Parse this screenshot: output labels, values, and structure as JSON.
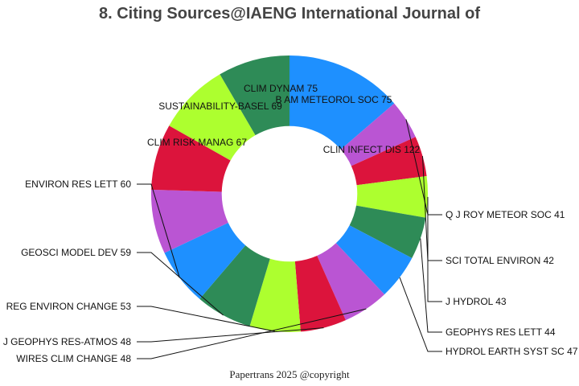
{
  "chart_data": {
    "type": "pie",
    "title": "8. Citing Sources@IAENG International Journal of",
    "inner_radius_ratio": 0.49,
    "slices": [
      {
        "label": "CLIN INFECT DIS",
        "value": 122,
        "color": "#1e90ff"
      },
      {
        "label": "Q J ROY METEOR SOC",
        "value": 41,
        "color": "#ba55d3"
      },
      {
        "label": "SCI TOTAL ENVIRON",
        "value": 42,
        "color": "#dc143c"
      },
      {
        "label": "J HYDROL",
        "value": 43,
        "color": "#adff2f"
      },
      {
        "label": "GEOPHYS RES LETT",
        "value": 44,
        "color": "#2e8b57"
      },
      {
        "label": "HYDROL EARTH SYST SC",
        "value": 47,
        "color": "#1e90ff"
      },
      {
        "label": "WIRES CLIM CHANGE",
        "value": 48,
        "color": "#ba55d3"
      },
      {
        "label": "J GEOPHYS RES-ATMOS",
        "value": 48,
        "color": "#dc143c"
      },
      {
        "label": "REG ENVIRON CHANGE",
        "value": 53,
        "color": "#adff2f"
      },
      {
        "label": "GEOSCI MODEL DEV",
        "value": 59,
        "color": "#2e8b57"
      },
      {
        "label": "ENVIRON RES LETT",
        "value": 60,
        "color": "#1e90ff"
      },
      {
        "label": "CLIM RISK MANAG",
        "value": 67,
        "color": "#ba55d3"
      },
      {
        "label": "SUSTAINABILITY-BASEL",
        "value": 69,
        "color": "#dc143c"
      },
      {
        "label": "CLIM DYNAM",
        "value": 75,
        "color": "#adff2f"
      },
      {
        "label": "B AM METEOROL SOC",
        "value": 75,
        "color": "#2e8b57"
      }
    ]
  },
  "footer": "Papertrans 2025 @copyright"
}
